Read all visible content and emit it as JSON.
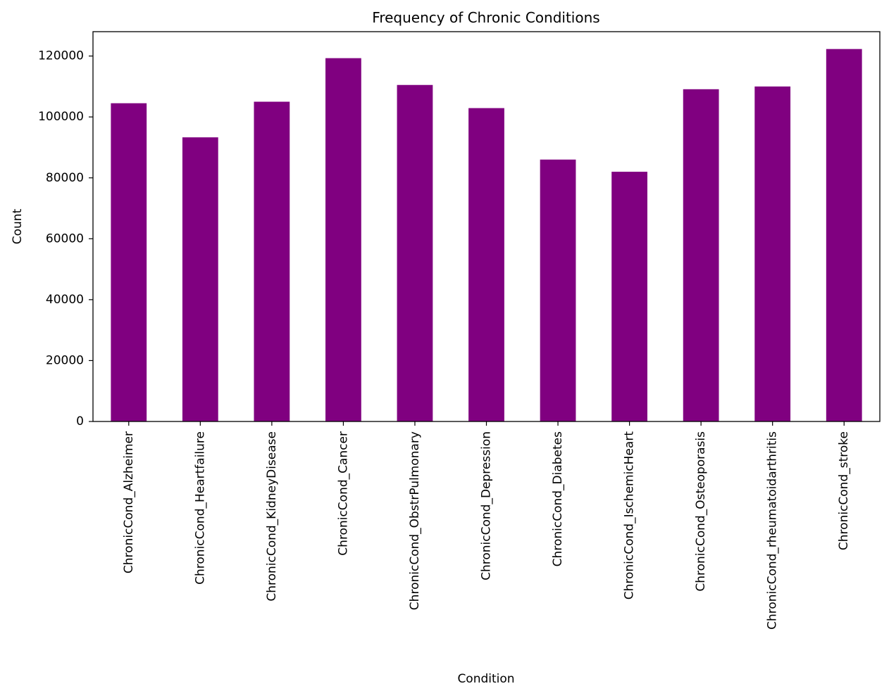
{
  "chart_data": {
    "type": "bar",
    "title": "Frequency of Chronic Conditions",
    "xlabel": "Condition",
    "ylabel": "Count",
    "categories": [
      "ChronicCond_Alzheimer",
      "ChronicCond_Heartfailure",
      "ChronicCond_KidneyDisease",
      "ChronicCond_Cancer",
      "ChronicCond_ObstrPulmonary",
      "ChronicCond_Depression",
      "ChronicCond_Diabetes",
      "ChronicCond_IschemicHeart",
      "ChronicCond_Osteoporasis",
      "ChronicCond_rheumatoidarthritis",
      "ChronicCond_stroke"
    ],
    "values": [
      104500,
      93300,
      105000,
      119300,
      110500,
      102900,
      86000,
      82000,
      109100,
      110000,
      122300
    ],
    "ylim": [
      0,
      128000
    ],
    "yticks": [
      0,
      20000,
      40000,
      60000,
      80000,
      100000,
      120000
    ],
    "ytick_labels": [
      "0",
      "20000",
      "40000",
      "60000",
      "80000",
      "100000",
      "120000"
    ],
    "grid": false,
    "bar_color": "#800080"
  }
}
